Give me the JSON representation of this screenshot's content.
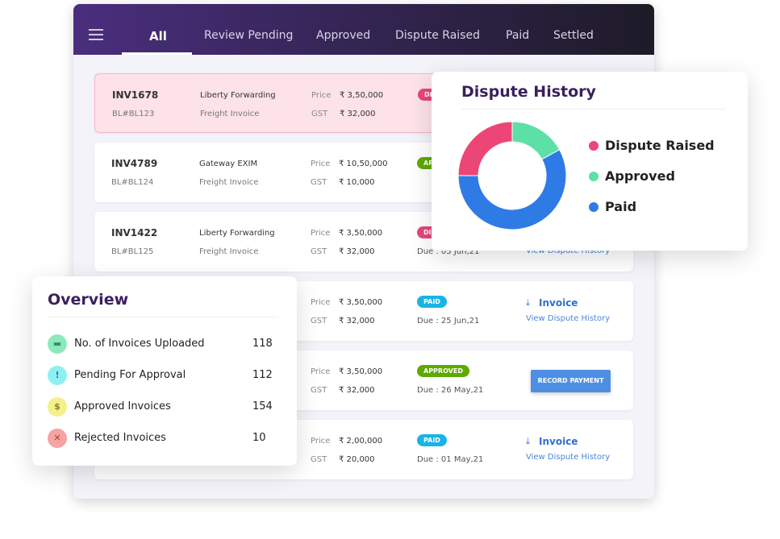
{
  "tabs": [
    "All",
    "Review Pending",
    "Approved",
    "Dispute Raised",
    "Paid",
    "Settled"
  ],
  "labels": {
    "price": "Price",
    "gst": "GST"
  },
  "rows": [
    {
      "id": "INV1678",
      "bl": "BL#BL123",
      "company": "Liberty Forwarding",
      "kind": "Freight Invoice",
      "price": "₹ 3,50,000",
      "gst": "₹ 32,000",
      "status": "DISPUTE RAISED",
      "highlight": true
    },
    {
      "id": "INV4789",
      "bl": "BL#BL124",
      "company": "Gateway EXIM",
      "kind": "Freight Invoice",
      "price": "₹ 10,50,000",
      "gst": "₹ 10,000",
      "status": "APPROVED"
    },
    {
      "id": "INV1422",
      "bl": "BL#BL125",
      "company": "Liberty Forwarding",
      "kind": "Freight Invoice",
      "price": "₹ 3,50,000",
      "gst": "₹ 32,000",
      "status": "DISPUTE RAISED",
      "due": "Due : 05 Jun,21",
      "link": "View Dispute History"
    },
    {
      "price": "₹ 3,50,000",
      "gst": "₹ 32,000",
      "status": "PAID",
      "due": "Due : 25 Jun,21",
      "invoice": "Invoice",
      "link": "View Dispute History"
    },
    {
      "price": "₹ 3,50,000",
      "gst": "₹ 32,000",
      "status": "APPROVED",
      "due": "Due : 26 May,21",
      "button": "RECORD PAYMENT"
    },
    {
      "price": "₹ 2,00,000",
      "gst": "₹ 20,000",
      "status": "PAID",
      "due": "Due : 01 May,21",
      "invoice": "Invoice",
      "link": "View Dispute History"
    }
  ],
  "chart_data": {
    "type": "donut",
    "title": "Dispute History",
    "series": [
      {
        "name": "Dispute Raised",
        "color": "#ec4677",
        "values": [
          25
        ]
      },
      {
        "name": "Approved",
        "color": "#5de0a5",
        "values": [
          17
        ]
      },
      {
        "name": "Paid",
        "color": "#2f7be5",
        "values": [
          58
        ]
      }
    ]
  },
  "overview": {
    "title": "Overview",
    "items": [
      {
        "label": "No. of Invoices Uploaded",
        "count": 118
      },
      {
        "label": "Pending For Approval",
        "count": 112
      },
      {
        "label": "Approved Invoices",
        "count": 154
      },
      {
        "label": "Rejected Invoices",
        "count": 10
      }
    ]
  }
}
